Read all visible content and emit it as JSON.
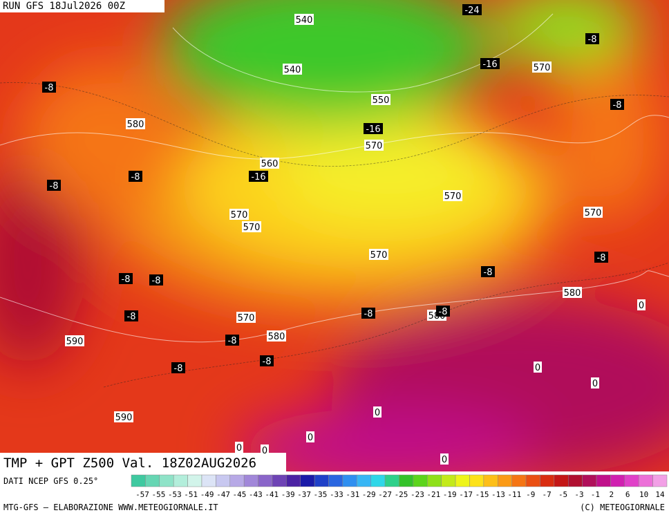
{
  "header": {
    "run": "RUN GFS 18Jul2026 00Z"
  },
  "map": {
    "title": "TMP + GPT Z500 Val. 18Z02AUG2026",
    "labels": [
      "540",
      "540",
      "550",
      "570",
      "580",
      "570",
      "560",
      "570",
      "570",
      "570",
      "570",
      "570",
      "580",
      "570",
      "580",
      "580",
      "590",
      "590",
      "0",
      "0",
      "0",
      "0",
      "0",
      "0",
      "0",
      "0",
      "-24",
      "-8",
      "-16",
      "-8",
      "-8",
      "-16",
      "-16",
      "-8",
      "-8",
      "-8",
      "-8",
      "-8",
      "-8",
      "-8",
      "-8",
      "-8",
      "-8",
      "-8",
      "-8"
    ]
  },
  "legend": {
    "source": "DATI NCEP GFS 0.25°",
    "ticks": [
      -57,
      -55,
      -53,
      -51,
      -49,
      -47,
      -45,
      -43,
      -41,
      -39,
      -37,
      -35,
      -33,
      -31,
      -29,
      -27,
      -25,
      -23,
      -21,
      -19,
      -17,
      -15,
      -13,
      -11,
      -9,
      -7,
      -5,
      -3,
      -1,
      2,
      6,
      10,
      14
    ],
    "colors": [
      "#3fc9a0",
      "#66d6b3",
      "#8fe3c8",
      "#b3eedb",
      "#d2f4ea",
      "#dce4f6",
      "#c8c8f0",
      "#b7a9e6",
      "#a187d9",
      "#8a65c9",
      "#6e43b5",
      "#4b22a3",
      "#1a1aa8",
      "#1f40c8",
      "#2a66e0",
      "#2f8ff0",
      "#38b6f5",
      "#2fd7e8",
      "#2ed08a",
      "#34c22a",
      "#5cd41c",
      "#8fe01a",
      "#c3ea1a",
      "#eef51a",
      "#fde21a",
      "#fdbf18",
      "#fb9a16",
      "#f57514",
      "#ea4f12",
      "#d92c10",
      "#c41616",
      "#b01030",
      "#b0105a",
      "#c0108a",
      "#d020b0",
      "#e040c8",
      "#ec70d8",
      "#f2a0e6"
    ]
  },
  "footer": {
    "credit": "MTG-GFS — ELABORAZIONE WWW.METEOGIORNALE.IT",
    "copyright": "(C) METEOGIORNALE"
  }
}
